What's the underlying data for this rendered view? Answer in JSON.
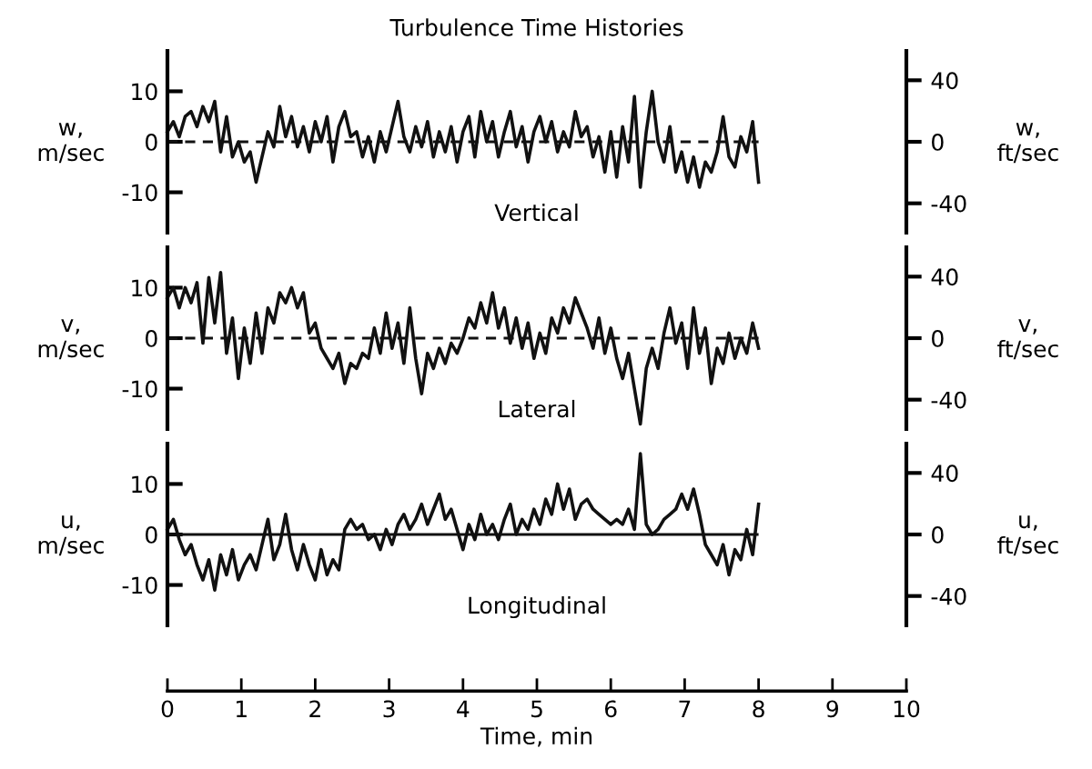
{
  "chart_data": [
    {
      "type": "line",
      "title": "Turbulence Time Histories",
      "ylabel": "w,\nm/sec",
      "y2label": "w,\nft/sec",
      "annotations": [
        "Vertical"
      ],
      "x": [
        0,
        0.08,
        0.16,
        0.24,
        0.32,
        0.4,
        0.48,
        0.56,
        0.64,
        0.72,
        0.8,
        0.88,
        0.96,
        1.04,
        1.12,
        1.2,
        1.28,
        1.36,
        1.44,
        1.52,
        1.6,
        1.68,
        1.76,
        1.84,
        1.92,
        2.0,
        2.08,
        2.16,
        2.24,
        2.32,
        2.4,
        2.48,
        2.56,
        2.64,
        2.72,
        2.8,
        2.88,
        2.96,
        3.04,
        3.12,
        3.2,
        3.28,
        3.36,
        3.44,
        3.52,
        3.6,
        3.68,
        3.76,
        3.84,
        3.92,
        4.0,
        4.08,
        4.16,
        4.24,
        4.32,
        4.4,
        4.48,
        4.56,
        4.64,
        4.72,
        4.8,
        4.88,
        4.96,
        5.04,
        5.12,
        5.2,
        5.28,
        5.36,
        5.44,
        5.52,
        5.6,
        5.68,
        5.76,
        5.84,
        5.92,
        6.0,
        6.08,
        6.16,
        6.24,
        6.32,
        6.4,
        6.48,
        6.56,
        6.64,
        6.72,
        6.8,
        6.88,
        6.96,
        7.04,
        7.12,
        7.2,
        7.28,
        7.36,
        7.44,
        7.52,
        7.6,
        7.68,
        7.76,
        7.84,
        7.92,
        8.0
      ],
      "series": [
        {
          "color": "#111111",
          "values": [
            2,
            4,
            1,
            5,
            6,
            3,
            7,
            4,
            8,
            -2,
            5,
            -3,
            0,
            -4,
            -2,
            -8,
            -3,
            2,
            -1,
            7,
            1,
            5,
            -1,
            3,
            -2,
            4,
            0,
            5,
            -4,
            3,
            6,
            1,
            2,
            -3,
            1,
            -4,
            2,
            -2,
            3,
            8,
            1,
            -2,
            3,
            -1,
            4,
            -3,
            2,
            -2,
            3,
            -4,
            2,
            5,
            -3,
            6,
            0,
            4,
            -3,
            2,
            6,
            -1,
            3,
            -4,
            2,
            5,
            0,
            4,
            -2,
            2,
            -1,
            6,
            1,
            3,
            -3,
            1,
            -6,
            2,
            -7,
            3,
            -4,
            9,
            -9,
            2,
            10,
            0,
            -4,
            3,
            -6,
            -2,
            -8,
            -3,
            -9,
            -4,
            -6,
            -2,
            5,
            -3,
            -5,
            1,
            -2,
            4,
            -8
          ]
        }
      ],
      "xlim": [
        0,
        10
      ],
      "ylim": [
        -18,
        18
      ],
      "yticks": [
        -10,
        0,
        10
      ],
      "y2lim": [
        -59.1,
        59.1
      ],
      "y2ticks": [
        -40,
        0,
        40
      ],
      "tick_labels": "y",
      "ref_lines": [
        {
          "axis": "y",
          "value": 0,
          "line_style": "dashed",
          "color": "#111111"
        }
      ],
      "grid": false,
      "legend": false,
      "line_style": "solid",
      "marker": "none"
    },
    {
      "type": "line",
      "ylabel": "v,\nm/sec",
      "y2label": "v,\nft/sec",
      "annotations": [
        "Lateral"
      ],
      "x": [
        0,
        0.08,
        0.16,
        0.24,
        0.32,
        0.4,
        0.48,
        0.56,
        0.64,
        0.72,
        0.8,
        0.88,
        0.96,
        1.04,
        1.12,
        1.2,
        1.28,
        1.36,
        1.44,
        1.52,
        1.6,
        1.68,
        1.76,
        1.84,
        1.92,
        2.0,
        2.08,
        2.16,
        2.24,
        2.32,
        2.4,
        2.48,
        2.56,
        2.64,
        2.72,
        2.8,
        2.88,
        2.96,
        3.04,
        3.12,
        3.2,
        3.28,
        3.36,
        3.44,
        3.52,
        3.6,
        3.68,
        3.76,
        3.84,
        3.92,
        4.0,
        4.08,
        4.16,
        4.24,
        4.32,
        4.4,
        4.48,
        4.56,
        4.64,
        4.72,
        4.8,
        4.88,
        4.96,
        5.04,
        5.12,
        5.2,
        5.28,
        5.36,
        5.44,
        5.52,
        5.6,
        5.68,
        5.76,
        5.84,
        5.92,
        6.0,
        6.08,
        6.16,
        6.24,
        6.32,
        6.4,
        6.48,
        6.56,
        6.64,
        6.72,
        6.8,
        6.88,
        6.96,
        7.04,
        7.12,
        7.2,
        7.28,
        7.36,
        7.44,
        7.52,
        7.6,
        7.68,
        7.76,
        7.84,
        7.92,
        8.0
      ],
      "series": [
        {
          "color": "#111111",
          "values": [
            8,
            10,
            6,
            10,
            7,
            11,
            -1,
            12,
            3,
            13,
            -3,
            4,
            -8,
            2,
            -5,
            5,
            -3,
            6,
            3,
            9,
            7,
            10,
            6,
            9,
            1,
            3,
            -2,
            -4,
            -6,
            -3,
            -9,
            -5,
            -6,
            -3,
            -4,
            2,
            -3,
            5,
            -2,
            3,
            -5,
            6,
            -4,
            -11,
            -3,
            -6,
            -2,
            -5,
            -1,
            -3,
            0,
            4,
            2,
            7,
            3,
            9,
            2,
            6,
            -1,
            4,
            -2,
            3,
            -4,
            1,
            -3,
            4,
            1,
            6,
            3,
            8,
            5,
            2,
            -2,
            4,
            -3,
            2,
            -4,
            -8,
            -3,
            -10,
            -17,
            -6,
            -2,
            -6,
            1,
            6,
            -1,
            3,
            -6,
            6,
            -3,
            2,
            -9,
            -2,
            -5,
            1,
            -4,
            0,
            -3,
            3,
            -2
          ]
        }
      ],
      "xlim": [
        0,
        10
      ],
      "ylim": [
        -18,
        18
      ],
      "yticks": [
        -10,
        0,
        10
      ],
      "y2lim": [
        -59.1,
        59.1
      ],
      "y2ticks": [
        -40,
        0,
        40
      ],
      "tick_labels": "y",
      "ref_lines": [
        {
          "axis": "y",
          "value": 0,
          "line_style": "dashed",
          "color": "#111111"
        }
      ],
      "grid": false,
      "legend": false,
      "line_style": "solid",
      "marker": "none"
    },
    {
      "type": "line",
      "ylabel": "u,\nm/sec",
      "y2label": "u,\nft/sec",
      "xlabel": "Time, min",
      "annotations": [
        "Longitudinal"
      ],
      "x": [
        0,
        0.08,
        0.16,
        0.24,
        0.32,
        0.4,
        0.48,
        0.56,
        0.64,
        0.72,
        0.8,
        0.88,
        0.96,
        1.04,
        1.12,
        1.2,
        1.28,
        1.36,
        1.44,
        1.52,
        1.6,
        1.68,
        1.76,
        1.84,
        1.92,
        2.0,
        2.08,
        2.16,
        2.24,
        2.32,
        2.4,
        2.48,
        2.56,
        2.64,
        2.72,
        2.8,
        2.88,
        2.96,
        3.04,
        3.12,
        3.2,
        3.28,
        3.36,
        3.44,
        3.52,
        3.6,
        3.68,
        3.76,
        3.84,
        3.92,
        4.0,
        4.08,
        4.16,
        4.24,
        4.32,
        4.4,
        4.48,
        4.56,
        4.64,
        4.72,
        4.8,
        4.88,
        4.96,
        5.04,
        5.12,
        5.2,
        5.28,
        5.36,
        5.44,
        5.52,
        5.6,
        5.68,
        5.76,
        5.84,
        5.92,
        6.0,
        6.08,
        6.16,
        6.24,
        6.32,
        6.4,
        6.48,
        6.56,
        6.64,
        6.72,
        6.8,
        6.88,
        6.96,
        7.04,
        7.12,
        7.2,
        7.28,
        7.36,
        7.44,
        7.52,
        7.6,
        7.68,
        7.76,
        7.84,
        7.92,
        8.0
      ],
      "series": [
        {
          "color": "#111111",
          "values": [
            1,
            3,
            -1,
            -4,
            -2,
            -6,
            -9,
            -5,
            -11,
            -4,
            -8,
            -3,
            -9,
            -6,
            -4,
            -7,
            -2,
            3,
            -5,
            -2,
            4,
            -3,
            -7,
            -2,
            -6,
            -9,
            -3,
            -8,
            -5,
            -7,
            1,
            3,
            1,
            2,
            -1,
            0,
            -3,
            1,
            -2,
            2,
            4,
            1,
            3,
            6,
            2,
            5,
            8,
            3,
            5,
            1,
            -3,
            2,
            -1,
            4,
            0,
            2,
            -1,
            3,
            6,
            0,
            3,
            1,
            5,
            2,
            7,
            4,
            10,
            5,
            9,
            3,
            6,
            7,
            5,
            4,
            3,
            2,
            3,
            2,
            5,
            1,
            16,
            2,
            0,
            1,
            3,
            4,
            5,
            8,
            5,
            9,
            4,
            -2,
            -4,
            -6,
            -2,
            -8,
            -3,
            -5,
            1,
            -4,
            6
          ]
        }
      ],
      "xlim": [
        0,
        10
      ],
      "xticks": [
        0,
        1,
        2,
        3,
        4,
        5,
        6,
        7,
        8,
        9,
        10
      ],
      "ylim": [
        -18,
        18
      ],
      "yticks": [
        -10,
        0,
        10
      ],
      "y2lim": [
        -59.1,
        59.1
      ],
      "y2ticks": [
        -40,
        0,
        40
      ],
      "ref_lines": [
        {
          "axis": "y",
          "value": 0,
          "line_style": "solid",
          "color": "#111111"
        }
      ],
      "grid": false,
      "legend": false,
      "line_style": "solid",
      "marker": "none"
    }
  ]
}
